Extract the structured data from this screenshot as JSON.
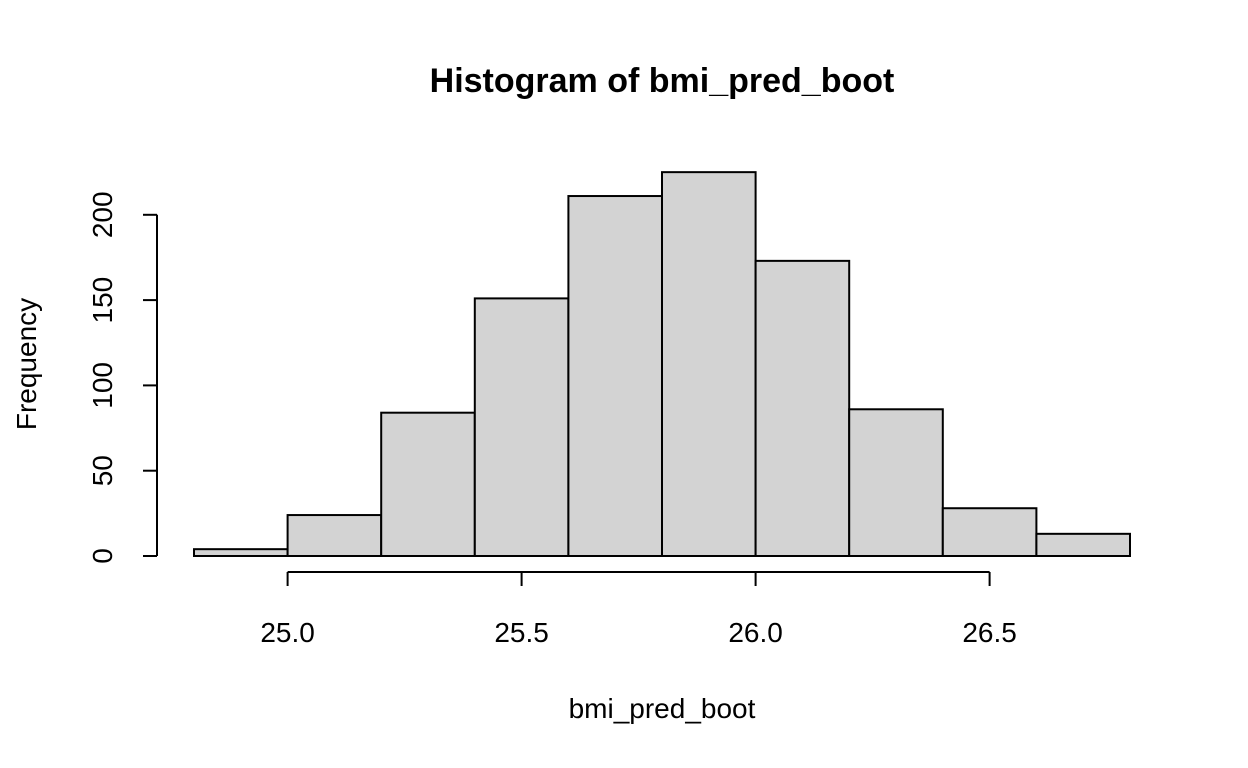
{
  "chart_data": {
    "type": "histogram",
    "title": "Histogram of bmi_pred_boot",
    "xlabel": "bmi_pred_boot",
    "ylabel": "Frequency",
    "bins": [
      {
        "x0": 24.8,
        "x1": 25.0,
        "count": 4
      },
      {
        "x0": 25.0,
        "x1": 25.2,
        "count": 24
      },
      {
        "x0": 25.2,
        "x1": 25.4,
        "count": 84
      },
      {
        "x0": 25.4,
        "x1": 25.6,
        "count": 151
      },
      {
        "x0": 25.6,
        "x1": 25.8,
        "count": 211
      },
      {
        "x0": 25.8,
        "x1": 26.0,
        "count": 225
      },
      {
        "x0": 26.0,
        "x1": 26.2,
        "count": 173
      },
      {
        "x0": 26.2,
        "x1": 26.4,
        "count": 86
      },
      {
        "x0": 26.4,
        "x1": 26.6,
        "count": 28
      },
      {
        "x0": 26.6,
        "x1": 26.8,
        "count": 13
      }
    ],
    "x_ticks": [
      25.0,
      25.5,
      26.0,
      26.5
    ],
    "x_tick_labels": [
      "25.0",
      "25.5",
      "26.0",
      "26.5"
    ],
    "y_ticks": [
      0,
      50,
      100,
      150,
      200
    ],
    "y_tick_labels": [
      "0",
      "50",
      "100",
      "150",
      "200"
    ],
    "bar_fill": "#d3d3d3",
    "bar_stroke": "#000000",
    "grid": false,
    "legend": "none"
  }
}
